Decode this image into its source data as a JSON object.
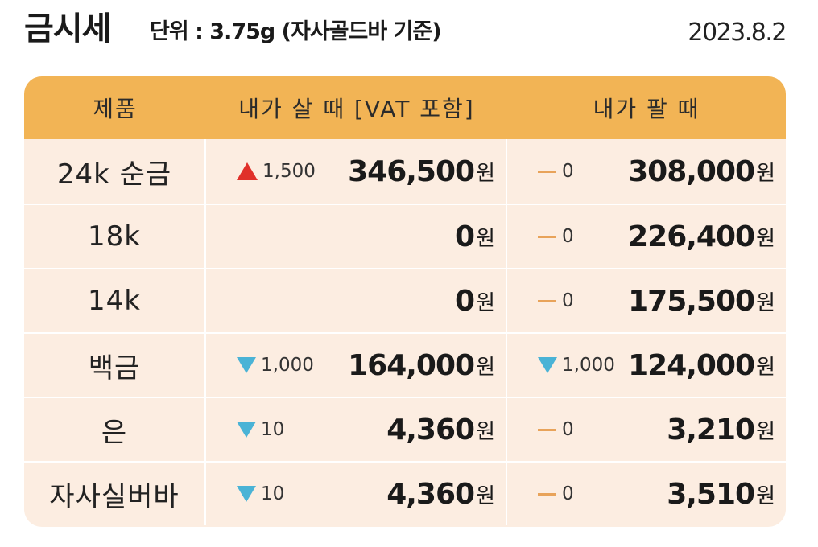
{
  "header": {
    "title": "금시세",
    "unit": "단위 : 3.75g (자사골드바 기준)",
    "date": "2023.8.2"
  },
  "table": {
    "columns": [
      "제품",
      "내가 살 때 [VAT 포함]",
      "내가 팔 때"
    ],
    "currency": "원",
    "rows": [
      {
        "product": "24k 순금",
        "buy_change": {
          "dir": "up",
          "value": "1,500"
        },
        "buy_price": "346,500",
        "sell_change": {
          "dir": "flat",
          "value": "0"
        },
        "sell_price": "308,000"
      },
      {
        "product": "18k",
        "buy_change": {
          "dir": "none",
          "value": ""
        },
        "buy_price": "0",
        "sell_change": {
          "dir": "flat",
          "value": "0"
        },
        "sell_price": "226,400"
      },
      {
        "product": "14k",
        "buy_change": {
          "dir": "none",
          "value": ""
        },
        "buy_price": "0",
        "sell_change": {
          "dir": "flat",
          "value": "0"
        },
        "sell_price": "175,500"
      },
      {
        "product": "백금",
        "buy_change": {
          "dir": "down",
          "value": "1,000"
        },
        "buy_price": "164,000",
        "sell_change": {
          "dir": "down",
          "value": "1,000"
        },
        "sell_price": "124,000"
      },
      {
        "product": "은",
        "buy_change": {
          "dir": "down",
          "value": "10"
        },
        "buy_price": "4,360",
        "sell_change": {
          "dir": "flat",
          "value": "0"
        },
        "sell_price": "3,210"
      },
      {
        "product": "자사실버바",
        "buy_change": {
          "dir": "down",
          "value": "10"
        },
        "buy_price": "4,360",
        "sell_change": {
          "dir": "flat",
          "value": "0"
        },
        "sell_price": "3,510"
      }
    ]
  },
  "colors": {
    "header_bg": "#f2b455",
    "row_bg": "#fcede1",
    "up_arrow": "#e0302a",
    "down_arrow": "#4ab3d6",
    "flat_dash": "#e8a35a"
  },
  "icons": {
    "up": "triangle-up-icon",
    "down": "triangle-down-icon",
    "flat": "dash-icon"
  }
}
